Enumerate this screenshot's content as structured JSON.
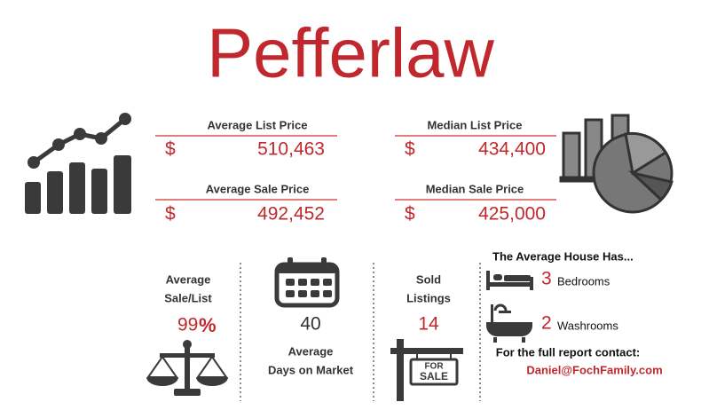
{
  "title": "Pefferlaw",
  "prices": [
    {
      "label": "Average List Price",
      "currency": "$",
      "value": "510,463"
    },
    {
      "label": "Median List Price",
      "currency": "$",
      "value": "434,400"
    },
    {
      "label": "Average Sale Price",
      "currency": "$",
      "value": "492,452"
    },
    {
      "label": "Median Sale Price",
      "currency": "$",
      "value": "425,000"
    }
  ],
  "sale_list": {
    "label_lines": [
      "Average",
      "Sale/List"
    ],
    "value": "99",
    "unit": "%"
  },
  "days": {
    "value": "40",
    "label_lines": [
      "Average",
      "Days on Market"
    ]
  },
  "sold": {
    "label_lines": [
      "Sold",
      "Listings"
    ],
    "value": "14",
    "sign": [
      "FOR",
      "SALE"
    ]
  },
  "house": {
    "heading": "The Average House Has...",
    "rooms": [
      {
        "count": "3",
        "label": "Bedrooms"
      },
      {
        "count": "2",
        "label": "Washrooms"
      }
    ]
  },
  "contact": {
    "text": "For the full report contact:",
    "email": "Daniel@FochFamily.com"
  }
}
